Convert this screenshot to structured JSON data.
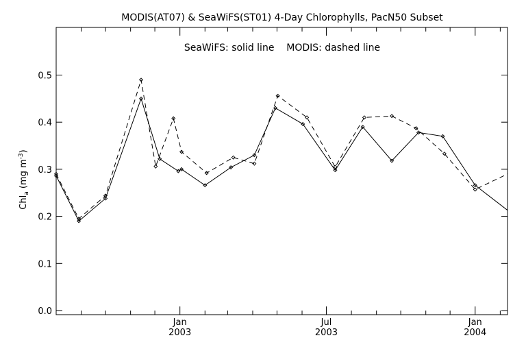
{
  "chart_data": {
    "type": "line",
    "title": "MODIS(AT07) & SeaWiFS(ST01) 4-Day Chlorophylls, PacN50 Subset",
    "legend_text": "SeaWiFS: solid line    MODIS: dashed line",
    "ylabel": "Chl",
    "ylabel_sub": "a",
    "ylabel_units_open": " (mg m",
    "ylabel_units_sup": "-3",
    "ylabel_units_close": ")",
    "xlim": [
      "2002-08-01",
      "2004-02-10"
    ],
    "ylim": [
      0.0,
      0.55
    ],
    "y_ticks": [
      0.0,
      0.1,
      0.2,
      0.3,
      0.4,
      0.5
    ],
    "y_tick_labels": [
      "0.0",
      "0.1",
      "0.2",
      "0.3",
      "0.4",
      "0.5"
    ],
    "x_major_ticks": [
      {
        "date": "2003-01-01",
        "month": "Jan",
        "year": "2003"
      },
      {
        "date": "2003-07-01",
        "month": "Jul",
        "year": "2003"
      },
      {
        "date": "2004-01-01",
        "month": "Jan",
        "year": "2004"
      }
    ],
    "x_minor_ticks": [
      "2002-09-01",
      "2002-10-01",
      "2002-11-01",
      "2002-12-01",
      "2003-02-01",
      "2003-03-01",
      "2003-04-01",
      "2003-05-01",
      "2003-06-01",
      "2003-08-01",
      "2003-09-01",
      "2003-10-01",
      "2003-11-01",
      "2003-12-01",
      "2004-02-01"
    ],
    "grid": false,
    "series": [
      {
        "style": "solid",
        "x": [
          "2002-08-01",
          "2002-08-29",
          "2002-10-01",
          "2002-11-14",
          "2002-12-07",
          "2002-12-30",
          "2003-01-03",
          "2003-02-01",
          "2003-03-05",
          "2003-04-03",
          "2003-04-29",
          "2003-06-02",
          "2003-07-12",
          "2003-08-15",
          "2003-09-20",
          "2003-10-23",
          "2003-11-22",
          "2004-01-01",
          "2004-02-10"
        ],
        "y": [
          0.286,
          0.19,
          0.238,
          0.45,
          0.322,
          0.296,
          0.3,
          0.266,
          0.304,
          0.33,
          0.43,
          0.396,
          0.298,
          0.39,
          0.318,
          0.378,
          0.37,
          0.266,
          0.213
        ]
      },
      {
        "style": "dashed",
        "x": [
          "2002-08-01",
          "2002-08-29",
          "2002-10-01",
          "2002-11-14",
          "2002-12-02",
          "2002-12-24",
          "2003-01-03",
          "2003-02-03",
          "2003-03-08",
          "2003-04-03",
          "2003-05-02",
          "2003-06-07",
          "2003-07-12",
          "2003-08-17",
          "2003-09-20",
          "2003-10-20",
          "2003-11-24",
          "2004-01-01",
          "2004-02-10"
        ],
        "y": [
          0.29,
          0.195,
          0.244,
          0.49,
          0.306,
          0.408,
          0.337,
          0.292,
          0.325,
          0.312,
          0.456,
          0.41,
          0.305,
          0.41,
          0.413,
          0.387,
          0.333,
          0.257,
          0.29
        ]
      }
    ]
  }
}
